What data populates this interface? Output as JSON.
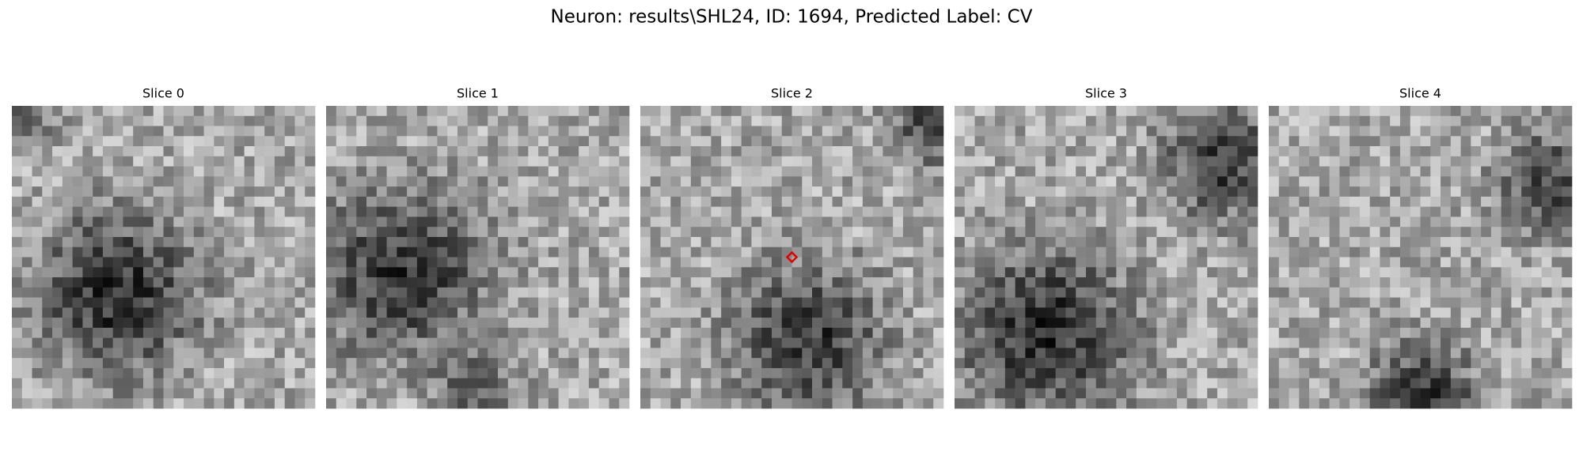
{
  "title": "Neuron: results\\SHL24, ID: 1694, Predicted Label: CV",
  "panels": [
    {
      "title": "Slice 0"
    },
    {
      "title": "Slice 1"
    },
    {
      "title": "Slice 2"
    },
    {
      "title": "Slice 3"
    },
    {
      "title": "Slice 4"
    }
  ]
}
